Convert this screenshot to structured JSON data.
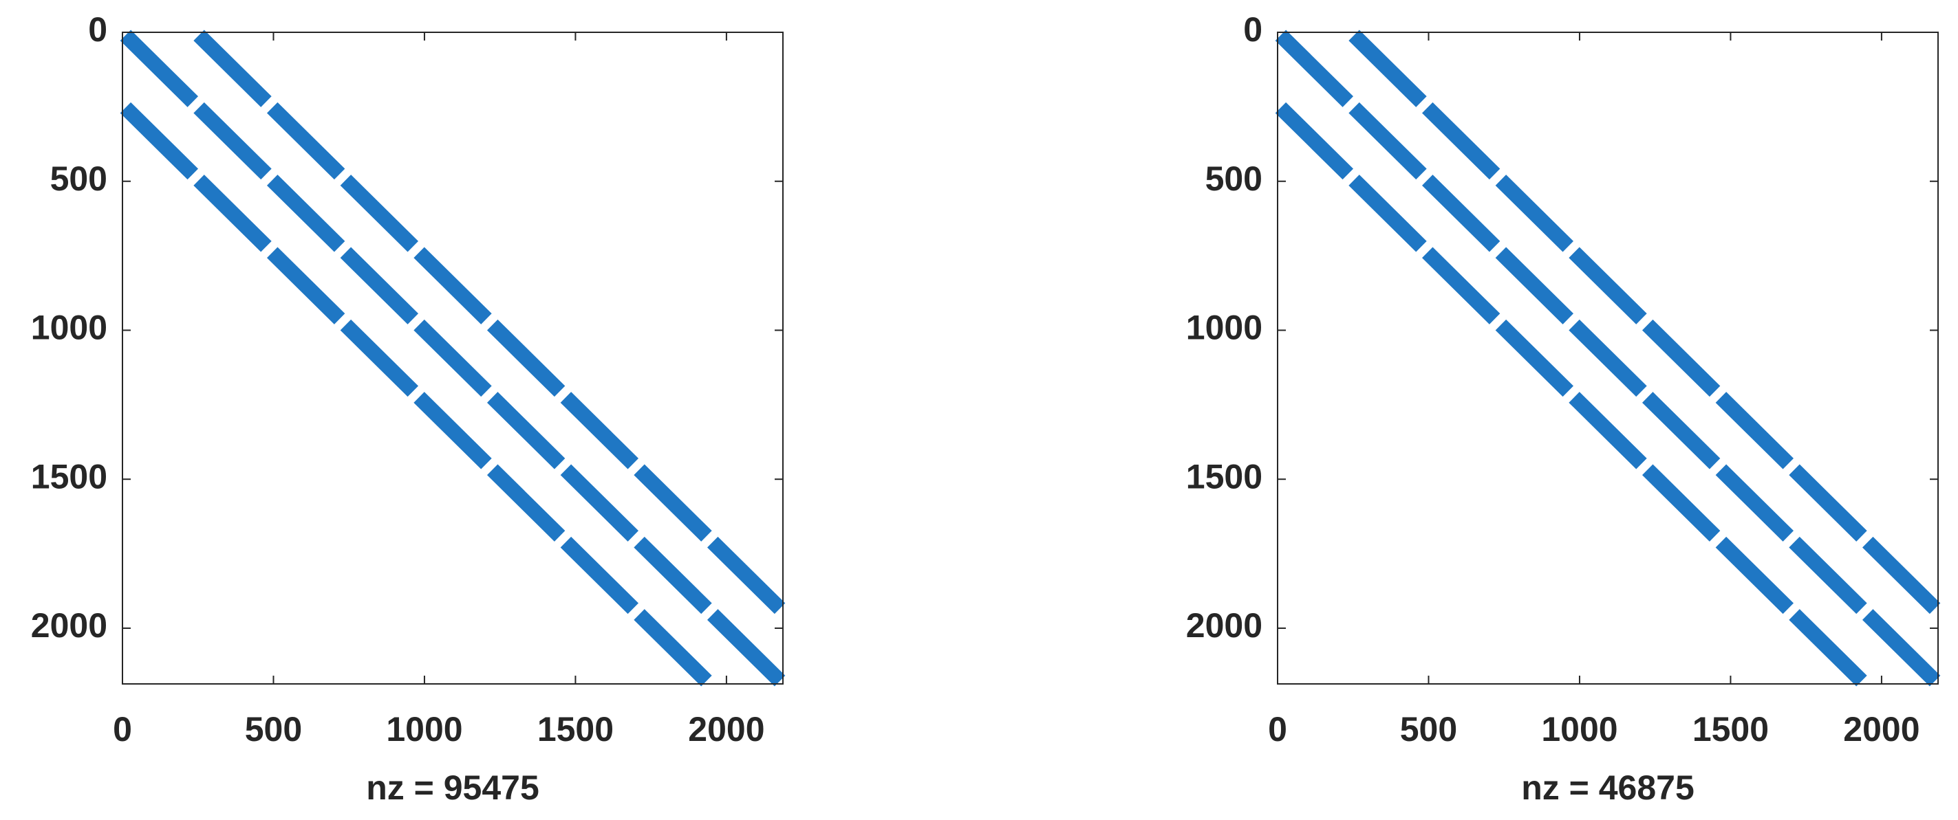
{
  "chart_data": [
    {
      "type": "spy",
      "xlabel": "nz = 95475",
      "xlim": [
        0,
        2187
      ],
      "ylim": [
        0,
        2187
      ],
      "xticks": [
        0,
        500,
        1000,
        1500,
        2000
      ],
      "yticks": [
        0,
        500,
        1000,
        1500,
        2000
      ],
      "diagonals": [
        0,
        243,
        -243
      ],
      "block": 243,
      "color": "#1f77c4"
    },
    {
      "type": "spy",
      "xlabel": "nz = 46875",
      "xlim": [
        0,
        2187
      ],
      "ylim": [
        0,
        2187
      ],
      "xticks": [
        0,
        500,
        1000,
        1500,
        2000
      ],
      "yticks": [
        0,
        500,
        1000,
        1500,
        2000
      ],
      "diagonals": [
        0,
        243,
        -243
      ],
      "block": 243,
      "color": "#1f77c4"
    }
  ]
}
